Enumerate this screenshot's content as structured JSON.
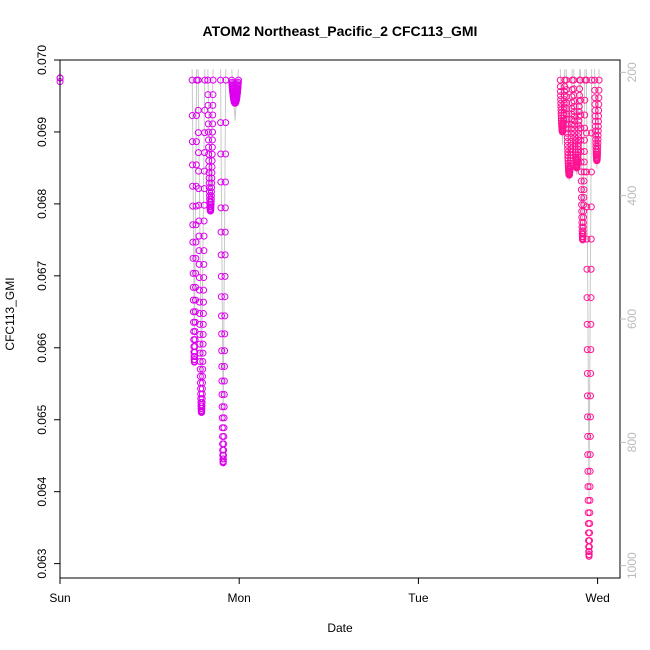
{
  "chart_data": {
    "type": "scatter",
    "title": "ATOM2 Northeast_Pacific_2 CFC113_GMI",
    "xlabel": "Date",
    "ylabel": "CFC113_GMI",
    "x_ticks": [
      "Sun",
      "Mon",
      "Tue",
      "Wed"
    ],
    "xlim": [
      "Sun 00:00",
      "Wed 03:00"
    ],
    "ylim": [
      0.0628,
      0.07
    ],
    "y_ticks": [
      "0.063",
      "0.064",
      "0.065",
      "0.066",
      "0.067",
      "0.068",
      "0.069",
      "0.070"
    ],
    "y2_ticks": [
      "200",
      "400",
      "600",
      "800",
      "1000"
    ],
    "y2lim": [
      1020,
      180
    ],
    "grid": false,
    "legend": "none",
    "colors": {
      "series_mon": "#dd00ee",
      "series_wed": "#ff1493",
      "pressure_line": "#c8c8c8",
      "axis": "#000000",
      "y2_axis": "#bbbbbb"
    },
    "series": [
      {
        "color_key": "series_mon",
        "profiles": [
          {
            "t0_h": 0.0,
            "t1_h": 0.02,
            "v_lo": 0.0697,
            "v_hi": 0.06975
          },
          {
            "t0_h": 17.7,
            "t1_h": 18.3,
            "v_lo": 0.0658,
            "v_hi": 0.06972
          },
          {
            "t0_h": 18.5,
            "t1_h": 19.4,
            "v_lo": 0.0651,
            "v_hi": 0.06972
          },
          {
            "t0_h": 19.8,
            "t1_h": 20.5,
            "v_lo": 0.0679,
            "v_hi": 0.06972
          },
          {
            "t0_h": 21.5,
            "t1_h": 22.2,
            "v_lo": 0.0644,
            "v_hi": 0.06972
          },
          {
            "t0_h": 23.0,
            "t1_h": 23.9,
            "v_lo": 0.0694,
            "v_hi": 0.06972
          }
        ]
      },
      {
        "color_key": "series_wed",
        "profiles": [
          {
            "t0_h": 67.0,
            "t1_h": 67.6,
            "v_lo": 0.069,
            "v_hi": 0.06972
          },
          {
            "t0_h": 67.8,
            "t1_h": 68.6,
            "v_lo": 0.0684,
            "v_hi": 0.06972
          },
          {
            "t0_h": 68.8,
            "t1_h": 69.6,
            "v_lo": 0.0685,
            "v_hi": 0.06972
          },
          {
            "t0_h": 69.7,
            "t1_h": 70.3,
            "v_lo": 0.0675,
            "v_hi": 0.06972
          },
          {
            "t0_h": 70.5,
            "t1_h": 71.2,
            "v_lo": 0.0631,
            "v_hi": 0.06972
          },
          {
            "t0_h": 71.6,
            "t1_h": 72.2,
            "v_lo": 0.0686,
            "v_hi": 0.06972
          }
        ]
      }
    ]
  }
}
